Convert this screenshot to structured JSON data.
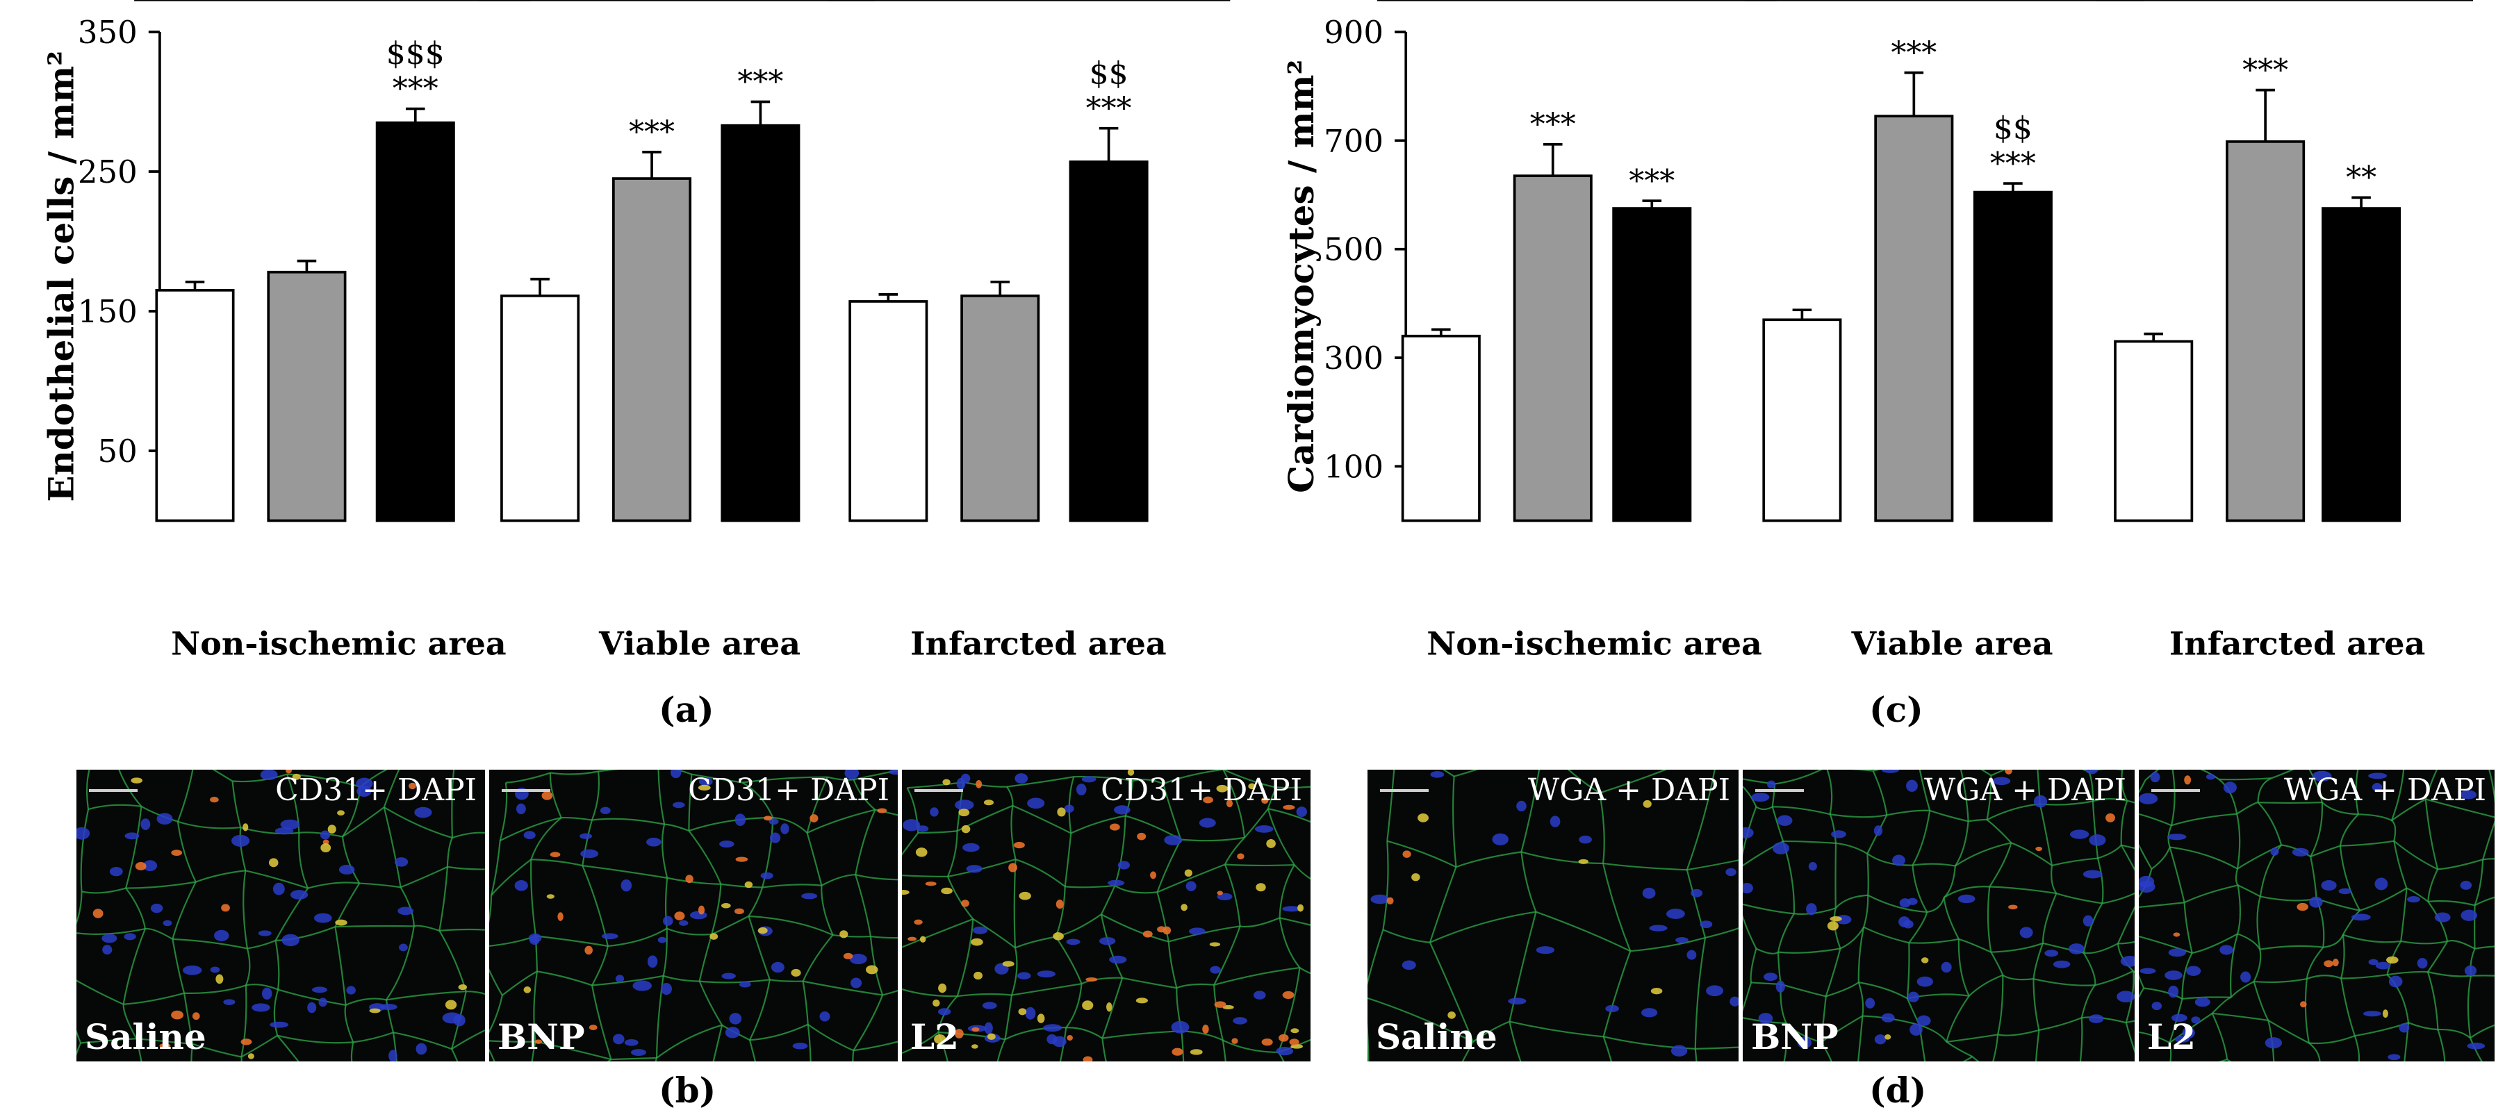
{
  "colors": {
    "Saline": "#ffffff",
    "BNP": "#999999",
    "L2": "#000000",
    "micro_bg": "#050807"
  },
  "panels": {
    "a": {
      "label": "(a)",
      "chart_data": {
        "type": "bar",
        "ylabel": "Endothelial cells / mm²",
        "ylim": [
          0,
          350
        ],
        "yticks": [
          50,
          150,
          250,
          350
        ],
        "groups": [
          "Non-ischemic area",
          "Viable area",
          "Infarcted area"
        ],
        "categories": [
          "Saline",
          "BNP",
          "L2"
        ],
        "values": [
          [
            165,
            178,
            285
          ],
          [
            161,
            245,
            283
          ],
          [
            157,
            161,
            257
          ]
        ],
        "errors": [
          [
            6,
            8,
            10
          ],
          [
            12,
            19,
            17
          ],
          [
            5,
            10,
            24
          ]
        ],
        "annotations": [
          [
            "",
            "",
            "$$$\n***"
          ],
          [
            "",
            "***",
            "***"
          ],
          [
            "",
            "",
            "$$\n***"
          ]
        ]
      }
    },
    "c": {
      "label": "(c)",
      "chart_data": {
        "type": "bar",
        "ylabel": "Cardiomyocytes / mm²",
        "ylim": [
          0,
          900
        ],
        "yticks": [
          100,
          300,
          500,
          700,
          900
        ],
        "groups": [
          "Non-ischemic area",
          "Viable area",
          "Infarcted area"
        ],
        "categories": [
          "Saline",
          "BNP",
          "L2"
        ],
        "values": [
          [
            340,
            635,
            575
          ],
          [
            370,
            745,
            605
          ],
          [
            330,
            698,
            575
          ]
        ],
        "errors": [
          [
            12,
            58,
            14
          ],
          [
            18,
            80,
            16
          ],
          [
            14,
            95,
            20
          ]
        ],
        "annotations": [
          [
            "",
            "***",
            "***"
          ],
          [
            "",
            "***",
            "$$\n***"
          ],
          [
            "",
            "***",
            "**"
          ]
        ]
      }
    },
    "b": {
      "label": "(b)",
      "images": [
        {
          "stain": "CD31+ DAPI",
          "condition": "Saline"
        },
        {
          "stain": "CD31+ DAPI",
          "condition": "BNP"
        },
        {
          "stain": "CD31+ DAPI",
          "condition": "L2"
        }
      ]
    },
    "d": {
      "label": "(d)",
      "images": [
        {
          "stain": "WGA + DAPI",
          "condition": "Saline"
        },
        {
          "stain": "WGA + DAPI",
          "condition": "BNP"
        },
        {
          "stain": "WGA + DAPI",
          "condition": "L2"
        }
      ]
    }
  }
}
